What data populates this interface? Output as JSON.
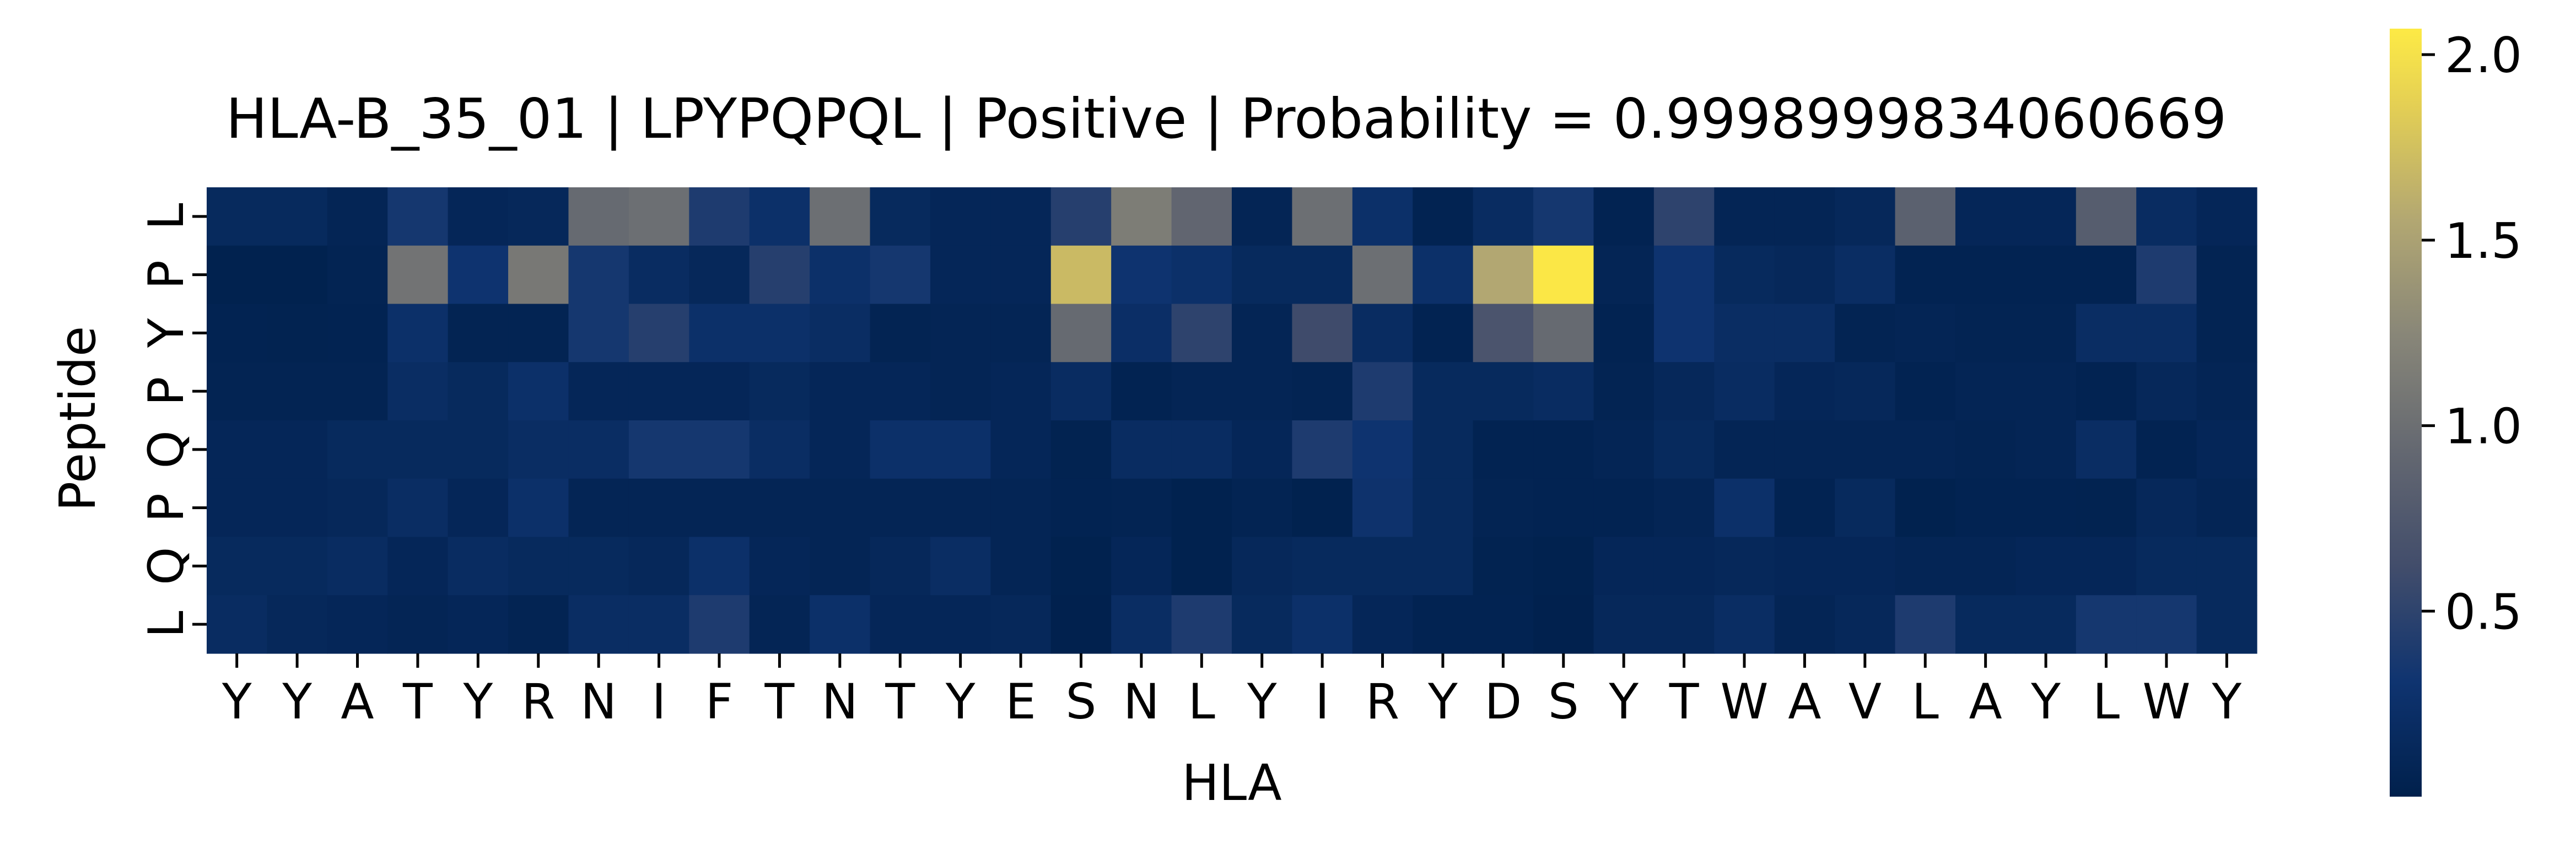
{
  "chart_data": {
    "type": "heatmap",
    "title": "HLA-B_35_01 | LPYPQPQL | Positive | Probability = 0.9998999834060669",
    "xlabel": "HLA",
    "ylabel": "Peptide",
    "x_categories": [
      "Y",
      "Y",
      "A",
      "T",
      "Y",
      "R",
      "N",
      "I",
      "F",
      "T",
      "N",
      "T",
      "Y",
      "E",
      "S",
      "N",
      "L",
      "Y",
      "I",
      "R",
      "Y",
      "D",
      "S",
      "Y",
      "T",
      "W",
      "A",
      "V",
      "L",
      "A",
      "Y",
      "L",
      "W",
      "Y"
    ],
    "y_categories": [
      "L",
      "P",
      "Y",
      "P",
      "Q",
      "P",
      "Q",
      "L"
    ],
    "values": [
      [
        0.15,
        0.15,
        0.08,
        0.35,
        0.1,
        0.12,
        0.95,
        1.0,
        0.4,
        0.25,
        1.0,
        0.15,
        0.1,
        0.1,
        0.45,
        1.15,
        0.9,
        0.08,
        1.0,
        0.25,
        0.05,
        0.18,
        0.35,
        0.05,
        0.5,
        0.08,
        0.08,
        0.12,
        0.85,
        0.1,
        0.1,
        0.8,
        0.18,
        0.1
      ],
      [
        0.03,
        0.03,
        0.06,
        1.05,
        0.3,
        1.1,
        0.35,
        0.18,
        0.12,
        0.45,
        0.25,
        0.35,
        0.1,
        0.1,
        1.7,
        0.3,
        0.25,
        0.15,
        0.15,
        1.0,
        0.25,
        1.55,
        2.05,
        0.08,
        0.3,
        0.15,
        0.12,
        0.2,
        0.05,
        0.05,
        0.05,
        0.05,
        0.4,
        0.06
      ],
      [
        0.05,
        0.04,
        0.05,
        0.25,
        0.06,
        0.06,
        0.35,
        0.45,
        0.25,
        0.25,
        0.2,
        0.06,
        0.08,
        0.08,
        0.95,
        0.22,
        0.5,
        0.08,
        0.6,
        0.18,
        0.05,
        0.7,
        0.95,
        0.05,
        0.3,
        0.2,
        0.2,
        0.06,
        0.08,
        0.06,
        0.06,
        0.2,
        0.2,
        0.06
      ],
      [
        0.06,
        0.06,
        0.06,
        0.2,
        0.15,
        0.25,
        0.1,
        0.1,
        0.1,
        0.15,
        0.1,
        0.1,
        0.08,
        0.1,
        0.18,
        0.05,
        0.08,
        0.08,
        0.06,
        0.4,
        0.15,
        0.15,
        0.18,
        0.06,
        0.12,
        0.18,
        0.1,
        0.12,
        0.05,
        0.08,
        0.08,
        0.05,
        0.12,
        0.08
      ],
      [
        0.1,
        0.1,
        0.15,
        0.15,
        0.15,
        0.2,
        0.2,
        0.35,
        0.35,
        0.2,
        0.1,
        0.25,
        0.25,
        0.1,
        0.04,
        0.18,
        0.18,
        0.1,
        0.4,
        0.3,
        0.15,
        0.05,
        0.05,
        0.08,
        0.15,
        0.08,
        0.08,
        0.08,
        0.08,
        0.06,
        0.08,
        0.2,
        0.05,
        0.1
      ],
      [
        0.1,
        0.1,
        0.12,
        0.2,
        0.1,
        0.25,
        0.08,
        0.08,
        0.08,
        0.08,
        0.08,
        0.08,
        0.08,
        0.08,
        0.05,
        0.06,
        0.03,
        0.06,
        0.03,
        0.28,
        0.15,
        0.06,
        0.05,
        0.05,
        0.08,
        0.25,
        0.05,
        0.15,
        0.03,
        0.05,
        0.05,
        0.04,
        0.12,
        0.08
      ],
      [
        0.15,
        0.15,
        0.18,
        0.1,
        0.18,
        0.15,
        0.15,
        0.12,
        0.25,
        0.1,
        0.08,
        0.12,
        0.2,
        0.08,
        0.03,
        0.1,
        0.03,
        0.12,
        0.15,
        0.15,
        0.15,
        0.04,
        0.03,
        0.1,
        0.1,
        0.12,
        0.1,
        0.1,
        0.08,
        0.08,
        0.1,
        0.1,
        0.15,
        0.15
      ],
      [
        0.18,
        0.12,
        0.1,
        0.08,
        0.1,
        0.06,
        0.2,
        0.2,
        0.4,
        0.08,
        0.25,
        0.1,
        0.1,
        0.12,
        0.02,
        0.2,
        0.4,
        0.15,
        0.25,
        0.1,
        0.05,
        0.05,
        0.02,
        0.12,
        0.12,
        0.2,
        0.08,
        0.12,
        0.4,
        0.15,
        0.15,
        0.35,
        0.35,
        0.15
      ]
    ],
    "colorbar": {
      "min": 0.0,
      "max": 2.07,
      "ticks": [
        0.5,
        1.0,
        1.5,
        2.0
      ],
      "tick_labels": [
        "0.5",
        "1.0",
        "1.5",
        "2.0"
      ],
      "colormap": "cividis"
    },
    "grid": false,
    "legend": "colorbar-right"
  }
}
